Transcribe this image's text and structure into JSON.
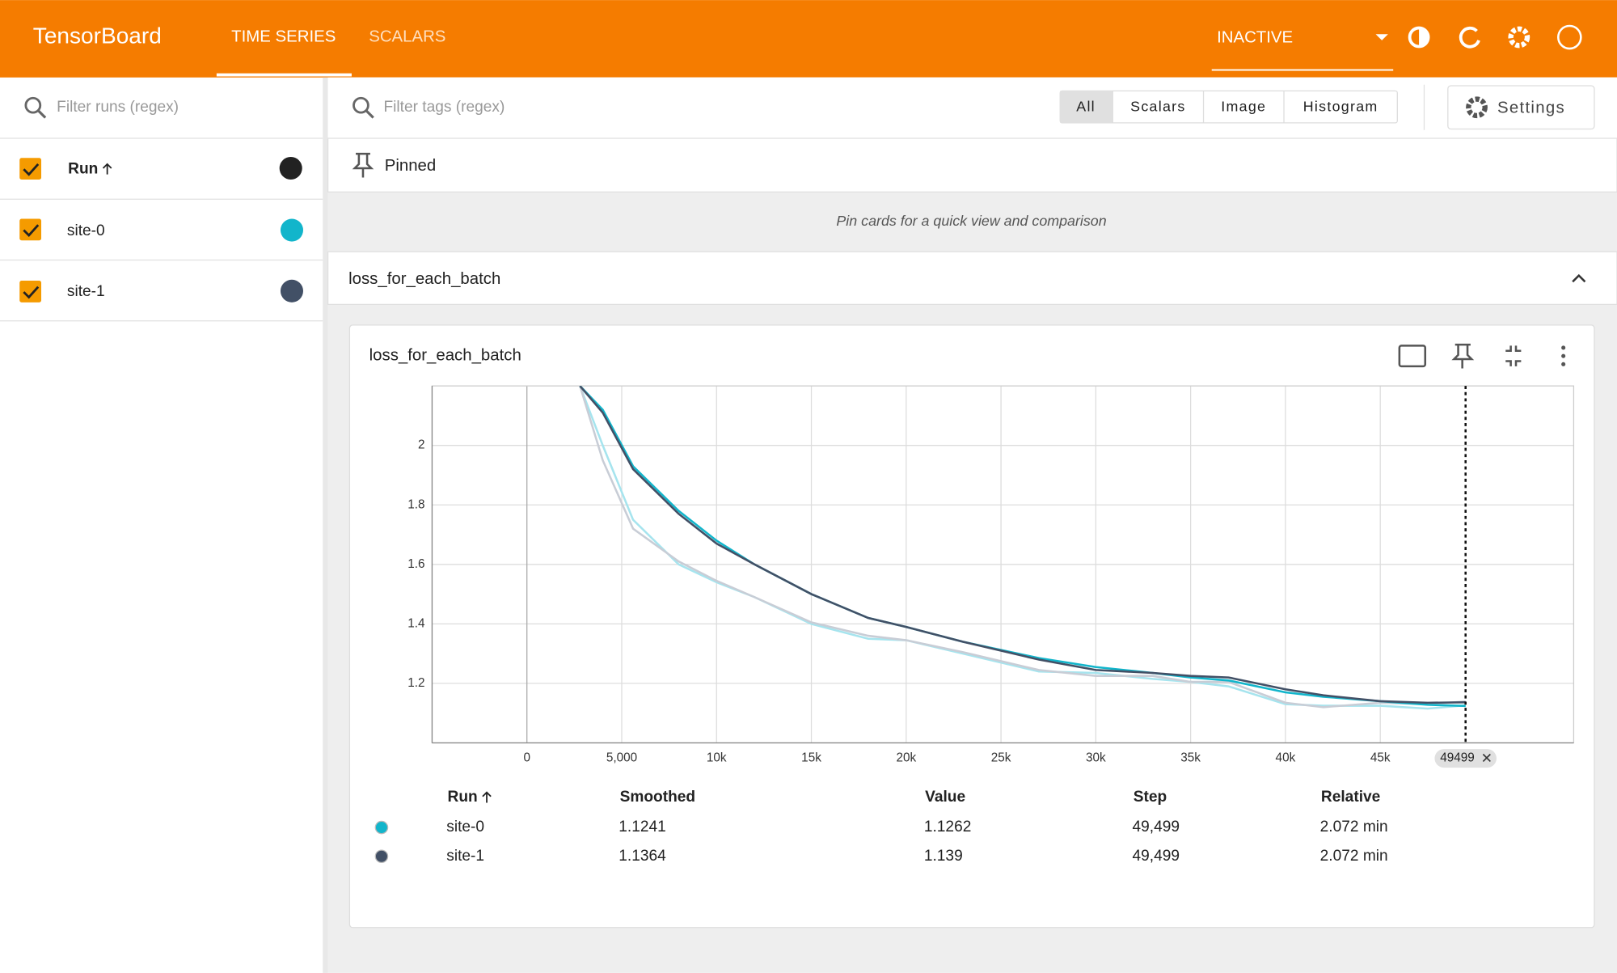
{
  "header": {
    "brand": "TensorBoard",
    "tabs": [
      "TIME SERIES",
      "SCALARS"
    ],
    "status": "INACTIVE"
  },
  "sidebar": {
    "filter_placeholder": "Filter runs (regex)",
    "column": "Run",
    "runs": [
      "site-0",
      "site-1"
    ]
  },
  "toolbar": {
    "filter_placeholder": "Filter tags (regex)",
    "type_buttons": [
      "All",
      "Scalars",
      "Image",
      "Histogram"
    ],
    "settings": "Settings"
  },
  "pinned": {
    "title": "Pinned",
    "hint": "Pin cards for a quick view and comparison"
  },
  "group": {
    "title": "loss_for_each_batch"
  },
  "card": {
    "title": "loss_for_each_batch",
    "chart_data": {
      "type": "line",
      "x": [
        2800,
        4000,
        5600,
        8000,
        10000,
        12000,
        15000,
        18000,
        20000,
        23000,
        27000,
        30000,
        33000,
        35000,
        37000,
        40000,
        42000,
        45000,
        47500,
        49499
      ],
      "series": [
        {
          "name": "site-0",
          "color": "#12b5cb",
          "raw_color": "#a6e4ee",
          "values": [
            2.2,
            2.12,
            1.93,
            1.78,
            1.68,
            1.6,
            1.5,
            1.42,
            1.39,
            1.34,
            1.285,
            1.255,
            1.235,
            1.22,
            1.21,
            1.17,
            1.155,
            1.14,
            1.128,
            1.1241
          ],
          "raw_values": [
            2.2,
            2.0,
            1.75,
            1.6,
            1.54,
            1.49,
            1.4,
            1.35,
            1.345,
            1.3,
            1.24,
            1.235,
            1.215,
            1.205,
            1.19,
            1.13,
            1.125,
            1.125,
            1.115,
            1.1262
          ]
        },
        {
          "name": "site-1",
          "color": "#425066",
          "raw_color": "#c8cdd6",
          "values": [
            2.2,
            2.11,
            1.92,
            1.77,
            1.67,
            1.6,
            1.5,
            1.42,
            1.39,
            1.34,
            1.28,
            1.245,
            1.235,
            1.225,
            1.22,
            1.18,
            1.16,
            1.14,
            1.135,
            1.1364
          ],
          "raw_values": [
            2.2,
            1.95,
            1.72,
            1.61,
            1.545,
            1.49,
            1.405,
            1.36,
            1.345,
            1.305,
            1.245,
            1.225,
            1.225,
            1.205,
            1.205,
            1.135,
            1.12,
            1.135,
            1.13,
            1.139
          ]
        }
      ],
      "xlim": [
        -5000,
        55200
      ],
      "ylim": [
        1.0,
        2.2
      ],
      "xticks": [
        0,
        {
          "value": 5000,
          "label": "5,000"
        },
        {
          "value": 10000,
          "label": "10k"
        },
        {
          "value": 15000,
          "label": "15k"
        },
        {
          "value": 20000,
          "label": "20k"
        },
        {
          "value": 25000,
          "label": "25k"
        },
        {
          "value": 30000,
          "label": "30k"
        },
        {
          "value": 35000,
          "label": "35k"
        },
        {
          "value": 40000,
          "label": "40k"
        },
        {
          "value": 45000,
          "label": "45k"
        }
      ],
      "yticks": [
        1.2,
        1.4,
        1.6,
        1.8,
        2
      ],
      "grid": true,
      "cursor": {
        "value": 49499,
        "label": "49499"
      }
    },
    "tooltip_table": {
      "headers": [
        "Run",
        "Smoothed",
        "Value",
        "Step",
        "Relative"
      ],
      "rows": [
        [
          "site-0",
          1.1241,
          1.1262,
          "49,499",
          "2.072 min"
        ],
        [
          "site-1",
          1.1364,
          1.139,
          "49,499",
          "2.072 min"
        ]
      ]
    }
  }
}
